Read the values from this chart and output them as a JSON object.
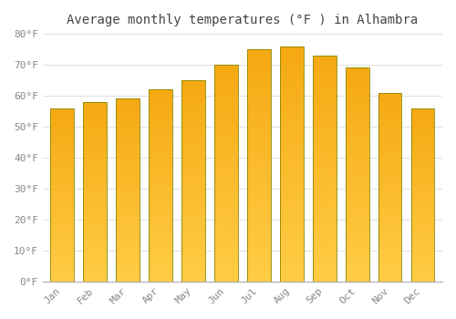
{
  "title": "Average monthly temperatures (°F ) in Alhambra",
  "months": [
    "Jan",
    "Feb",
    "Mar",
    "Apr",
    "May",
    "Jun",
    "Jul",
    "Aug",
    "Sep",
    "Oct",
    "Nov",
    "Dec"
  ],
  "values": [
    56,
    58,
    59,
    62,
    65,
    70,
    75,
    76,
    73,
    69,
    61,
    56
  ],
  "bar_color_top": "#F5A800",
  "bar_color_bottom": "#FFCC44",
  "ylim": [
    0,
    80
  ],
  "ytick_step": 10,
  "background_color": "#ffffff",
  "grid_color": "#e0e0e0",
  "title_fontsize": 10,
  "tick_fontsize": 8,
  "bar_edge_color": "#999900",
  "fig_width": 5.0,
  "fig_height": 3.5,
  "dpi": 100
}
